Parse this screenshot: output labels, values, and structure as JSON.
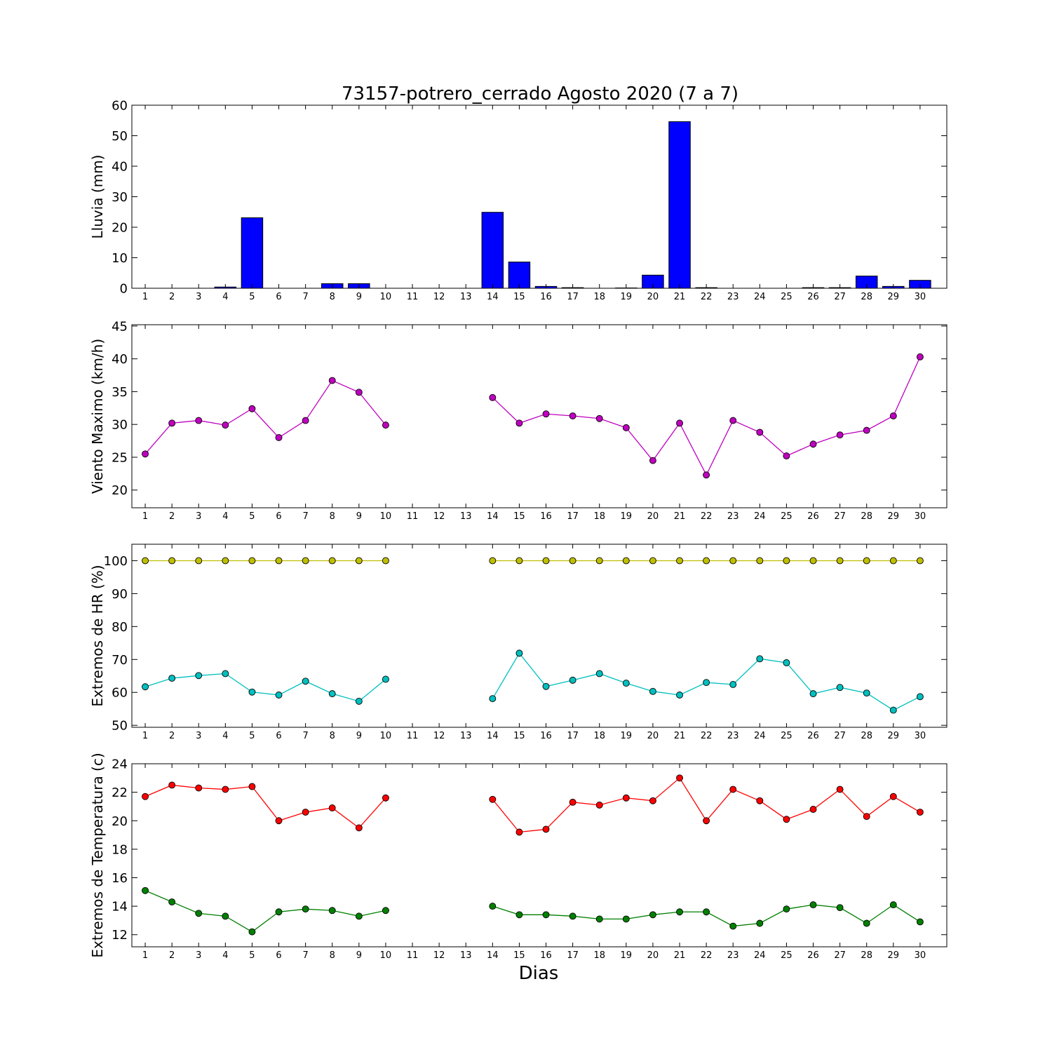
{
  "title": "73157-potrero_cerrado Agosto 2020  (7 a 7)",
  "xlabel": "Dias",
  "days": [
    1,
    2,
    3,
    4,
    5,
    6,
    7,
    8,
    9,
    10,
    11,
    12,
    13,
    14,
    15,
    16,
    17,
    18,
    19,
    20,
    21,
    22,
    23,
    24,
    25,
    26,
    27,
    28,
    29,
    30
  ],
  "chart_data": [
    {
      "type": "bar",
      "ylabel": "Lluvia (mm)",
      "ylim": [
        0,
        60
      ],
      "yticks": [
        0,
        10,
        20,
        30,
        40,
        50,
        60
      ],
      "grid": false,
      "series": [
        {
          "color": "#0000ff",
          "values": [
            0,
            0,
            0,
            0.4,
            23.1,
            0,
            0,
            1.5,
            1.5,
            0,
            0,
            0,
            0,
            24.9,
            8.6,
            0.6,
            0.2,
            0,
            0.1,
            4.3,
            54.6,
            0.2,
            0,
            0,
            0,
            0.2,
            0.2,
            4.0,
            0.6,
            2.6
          ]
        }
      ]
    },
    {
      "type": "line",
      "ylabel": "Viento Maximo (km/h)",
      "ylim": [
        17.3,
        45.2
      ],
      "yticks": [
        20,
        25,
        30,
        35,
        40,
        45
      ],
      "grid": false,
      "series": [
        {
          "color": "#bf00bf",
          "values": [
            25.5,
            30.2,
            30.6,
            29.9,
            32.4,
            28.0,
            30.6,
            36.7,
            34.9,
            29.9,
            null,
            null,
            null,
            34.1,
            30.2,
            31.6,
            31.3,
            30.9,
            29.5,
            24.5,
            30.2,
            22.3,
            30.6,
            28.8,
            25.2,
            27.0,
            28.4,
            29.1,
            31.3,
            40.3
          ]
        }
      ]
    },
    {
      "type": "line",
      "ylabel": "Extremos de HR (%)",
      "ylim": [
        49.4,
        105
      ],
      "yticks": [
        50,
        60,
        70,
        80,
        90,
        100
      ],
      "grid": false,
      "series": [
        {
          "color": "#bfbf00",
          "values": [
            100,
            100,
            100,
            100,
            100,
            100,
            100,
            100,
            100,
            100,
            null,
            null,
            null,
            100,
            100,
            100,
            100,
            100,
            100,
            100,
            100,
            100,
            100,
            100,
            100,
            100,
            100,
            100,
            100,
            100
          ]
        },
        {
          "color": "#00bfbf",
          "values": [
            61.7,
            64.3,
            65.1,
            65.7,
            60.1,
            59.2,
            63.4,
            59.6,
            57.3,
            64.0,
            null,
            null,
            null,
            58.1,
            71.9,
            61.8,
            63.7,
            65.7,
            62.8,
            60.3,
            59.2,
            63.0,
            62.4,
            70.2,
            69.0,
            59.6,
            61.5,
            59.8,
            54.6,
            58.7
          ]
        }
      ]
    },
    {
      "type": "line",
      "ylabel": "Extremos de Temperatura (c)",
      "ylim": [
        11.15,
        24
      ],
      "yticks": [
        12,
        14,
        16,
        18,
        20,
        22,
        24
      ],
      "grid": false,
      "series": [
        {
          "color": "#ff0000",
          "values": [
            21.7,
            22.5,
            22.3,
            22.2,
            22.4,
            20.0,
            20.6,
            20.9,
            19.5,
            21.6,
            null,
            null,
            null,
            21.5,
            19.2,
            19.4,
            21.3,
            21.1,
            21.6,
            21.4,
            23.0,
            20.0,
            22.2,
            21.4,
            20.1,
            20.8,
            22.2,
            20.3,
            21.7,
            20.6
          ]
        },
        {
          "color": "#008000",
          "values": [
            15.1,
            14.3,
            13.5,
            13.3,
            12.2,
            13.6,
            13.8,
            13.7,
            13.3,
            13.7,
            null,
            null,
            null,
            14.0,
            13.4,
            13.4,
            13.3,
            13.1,
            13.1,
            13.4,
            13.6,
            13.6,
            12.6,
            12.8,
            13.8,
            14.1,
            13.9,
            12.8,
            14.1,
            12.9
          ]
        }
      ]
    }
  ]
}
